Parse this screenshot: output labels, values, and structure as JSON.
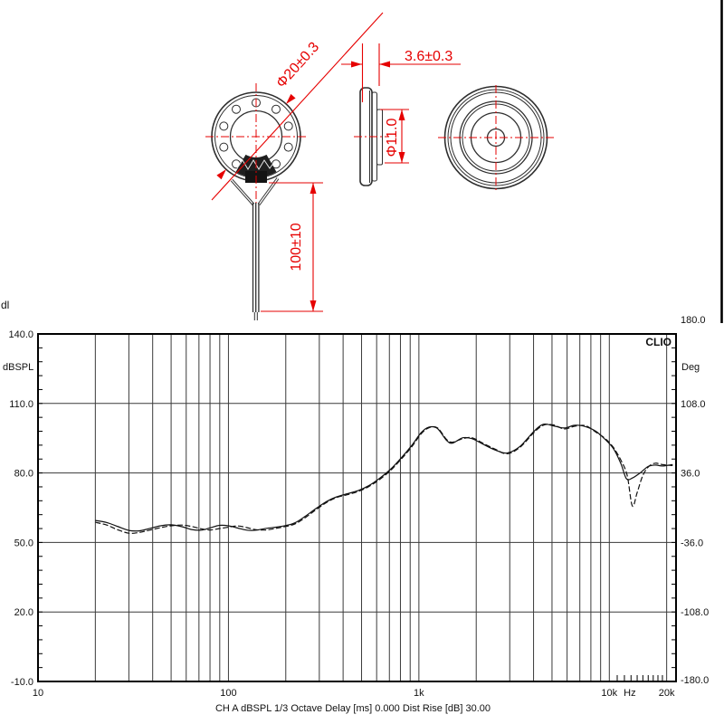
{
  "page": {
    "stray_text_fragment": "dl"
  },
  "drawing": {
    "colors": {
      "dimension_red": "#e60000",
      "line_ink": "#2e2e2e"
    },
    "labels": {
      "outer_diameter": "Φ20±0.3",
      "thickness": "3.6±0.3",
      "magnet_diameter": "Φ11.0",
      "wire_length": "100±10"
    }
  },
  "chart_data": {
    "type": "line",
    "brand": "CLIO",
    "title": "",
    "x_axis": {
      "scale": "log",
      "min": 10,
      "max": 22400,
      "unit": "Hz",
      "labels": [
        {
          "text": "10",
          "f": 10
        },
        {
          "text": "100",
          "f": 100
        },
        {
          "text": "1k",
          "f": 1000
        },
        {
          "text": "10k",
          "f": 10000
        },
        {
          "text": "Hz",
          "f": 12800
        },
        {
          "text": "20k",
          "f": 20000
        }
      ]
    },
    "y_left": {
      "label": "dBSPL",
      "min": -10,
      "max": 140,
      "ticks": [
        140,
        110,
        80,
        50,
        20,
        -10
      ],
      "tick_labels": [
        "140.0",
        "110.0",
        "80.0",
        "50.0",
        "20.0",
        "-10.0"
      ],
      "minor_step": 6
    },
    "y_right": {
      "label": "Deg",
      "min": -180,
      "max": 180,
      "ticks": [
        180,
        108,
        36,
        -36,
        -108,
        -180
      ],
      "tick_labels": [
        "180.0",
        "108.0",
        "36.0",
        "-36.0",
        "-108.0",
        "-180.0"
      ],
      "minor_step": 14.4
    },
    "status_line": "CH A   dBSPL   1/3 Octave   Delay [ms] 0.000   Dist Rise [dB] 30.00",
    "grid": true,
    "legend": [],
    "series": [
      {
        "name": "frequency-response-solid",
        "style": "solid",
        "points": [
          [
            20,
            59.5
          ],
          [
            23,
            58.6
          ],
          [
            26,
            57.0
          ],
          [
            30,
            55.2
          ],
          [
            34,
            55.0
          ],
          [
            38,
            55.9
          ],
          [
            44,
            57.2
          ],
          [
            50,
            57.6
          ],
          [
            57,
            56.8
          ],
          [
            64,
            55.6
          ],
          [
            72,
            55.3
          ],
          [
            80,
            56.3
          ],
          [
            90,
            57.4
          ],
          [
            100,
            57.2
          ],
          [
            112,
            56.2
          ],
          [
            125,
            55.3
          ],
          [
            140,
            55.3
          ],
          [
            158,
            56.1
          ],
          [
            178,
            56.6
          ],
          [
            200,
            57.3
          ],
          [
            225,
            58.6
          ],
          [
            255,
            61.5
          ],
          [
            290,
            64.8
          ],
          [
            330,
            67.8
          ],
          [
            370,
            69.7
          ],
          [
            420,
            71.0
          ],
          [
            480,
            72.4
          ],
          [
            545,
            74.5
          ],
          [
            620,
            77.6
          ],
          [
            710,
            81.6
          ],
          [
            810,
            86.6
          ],
          [
            920,
            92.0
          ],
          [
            1030,
            97.5
          ],
          [
            1130,
            99.8
          ],
          [
            1250,
            99.2
          ],
          [
            1400,
            94.0
          ],
          [
            1500,
            92.9
          ],
          [
            1700,
            95.2
          ],
          [
            1900,
            94.8
          ],
          [
            2150,
            92.6
          ],
          [
            2500,
            90.0
          ],
          [
            2900,
            88.6
          ],
          [
            3400,
            91.5
          ],
          [
            4000,
            97.8
          ],
          [
            4500,
            101.0
          ],
          [
            5100,
            100.3
          ],
          [
            5800,
            99.4
          ],
          [
            6600,
            100.6
          ],
          [
            7500,
            100.0
          ],
          [
            8500,
            98.0
          ],
          [
            9500,
            94.5
          ],
          [
            10500,
            90.5
          ],
          [
            11500,
            84.0
          ],
          [
            12300,
            77.5
          ],
          [
            13200,
            77.8
          ],
          [
            14500,
            80.0
          ],
          [
            16000,
            82.8
          ],
          [
            17500,
            83.4
          ],
          [
            19000,
            83.0
          ],
          [
            21500,
            83.6
          ]
        ]
      },
      {
        "name": "frequency-response-dashed",
        "style": "dashed",
        "points": [
          [
            20,
            58.7
          ],
          [
            23,
            57.5
          ],
          [
            26,
            55.6
          ],
          [
            30,
            54.0
          ],
          [
            34,
            54.3
          ],
          [
            38,
            55.2
          ],
          [
            44,
            56.4
          ],
          [
            50,
            57.2
          ],
          [
            57,
            57.5
          ],
          [
            64,
            56.9
          ],
          [
            72,
            55.9
          ],
          [
            80,
            55.4
          ],
          [
            90,
            56.0
          ],
          [
            100,
            56.6
          ],
          [
            112,
            57.1
          ],
          [
            125,
            56.4
          ],
          [
            140,
            55.5
          ],
          [
            158,
            55.4
          ],
          [
            178,
            56.1
          ],
          [
            200,
            56.9
          ],
          [
            225,
            58.1
          ],
          [
            255,
            60.9
          ],
          [
            290,
            64.3
          ],
          [
            330,
            67.4
          ],
          [
            370,
            69.4
          ],
          [
            420,
            70.6
          ],
          [
            480,
            72.0
          ],
          [
            545,
            74.1
          ],
          [
            620,
            77.1
          ],
          [
            710,
            81.1
          ],
          [
            810,
            86.1
          ],
          [
            920,
            91.4
          ],
          [
            1030,
            97.0
          ],
          [
            1130,
            99.5
          ],
          [
            1250,
            99.5
          ],
          [
            1400,
            94.4
          ],
          [
            1500,
            93.3
          ],
          [
            1700,
            94.8
          ],
          [
            1900,
            95.2
          ],
          [
            2150,
            93.0
          ],
          [
            2500,
            90.4
          ],
          [
            2900,
            88.3
          ],
          [
            3400,
            91.1
          ],
          [
            4000,
            97.3
          ],
          [
            4500,
            100.6
          ],
          [
            5100,
            100.7
          ],
          [
            5800,
            99.0
          ],
          [
            6600,
            100.2
          ],
          [
            7500,
            100.4
          ],
          [
            8500,
            97.6
          ],
          [
            9500,
            94.9
          ],
          [
            10500,
            91.0
          ],
          [
            11500,
            85.5
          ],
          [
            12400,
            79.0
          ],
          [
            13200,
            65.8
          ],
          [
            14000,
            71.5
          ],
          [
            15000,
            79.0
          ],
          [
            16200,
            83.0
          ],
          [
            17500,
            84.2
          ],
          [
            19000,
            83.6
          ],
          [
            21500,
            83.2
          ]
        ]
      }
    ]
  }
}
